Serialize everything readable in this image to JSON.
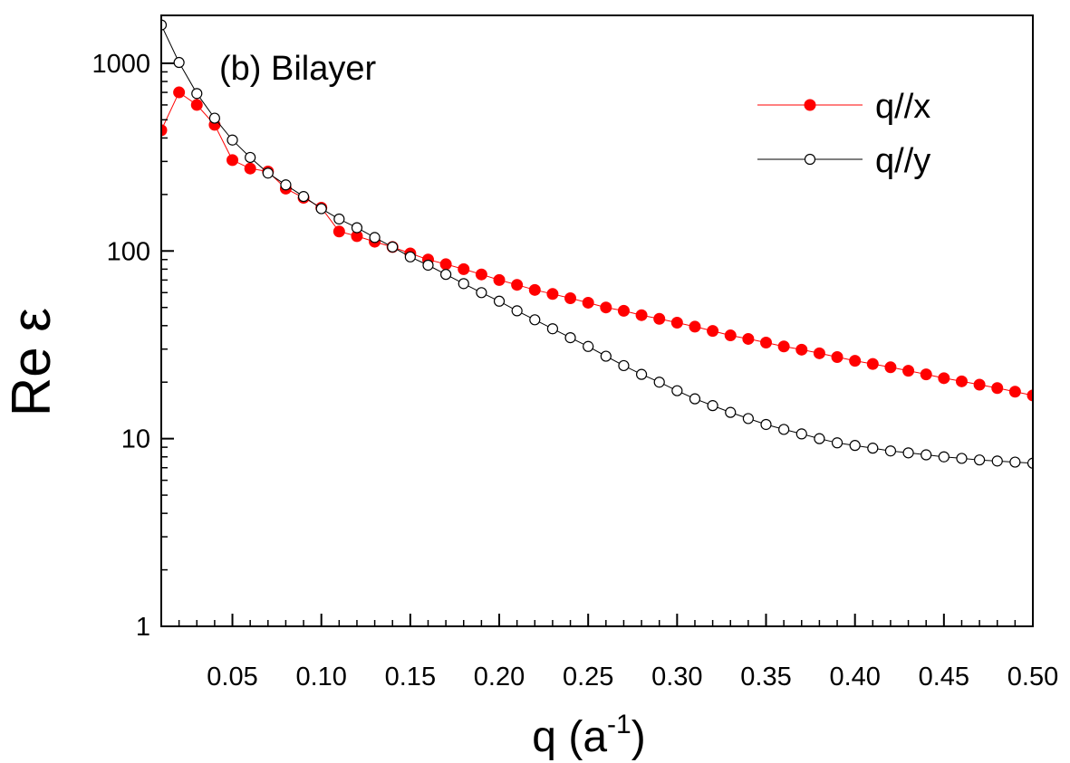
{
  "chart_data": {
    "type": "line",
    "title": "",
    "annotation": "(b) Bilayer",
    "xlabel": "q (a",
    "xlabel_sup": "-1",
    "xlabel_close": ")",
    "ylabel": "Re ε",
    "xlim": [
      0.01,
      0.5
    ],
    "ylim": [
      1,
      1800
    ],
    "yscale": "log",
    "grid": false,
    "legend_position": "top-right",
    "x_ticks": [
      0.05,
      0.1,
      0.15,
      0.2,
      0.25,
      0.3,
      0.35,
      0.4,
      0.45,
      0.5
    ],
    "x_tick_labels": [
      "0.05",
      "0.10",
      "0.15",
      "0.20",
      "0.25",
      "0.30",
      "0.35",
      "0.40",
      "0.45",
      "0.50"
    ],
    "y_ticks": [
      1,
      10,
      100,
      1000
    ],
    "y_tick_labels": [
      "1",
      "10",
      "100",
      "1000"
    ],
    "x": [
      0.01,
      0.02,
      0.03,
      0.04,
      0.05,
      0.06,
      0.07,
      0.08,
      0.09,
      0.1,
      0.11,
      0.12,
      0.13,
      0.14,
      0.15,
      0.16,
      0.17,
      0.18,
      0.19,
      0.2,
      0.21,
      0.22,
      0.23,
      0.24,
      0.25,
      0.26,
      0.27,
      0.28,
      0.29,
      0.3,
      0.31,
      0.32,
      0.33,
      0.34,
      0.35,
      0.36,
      0.37,
      0.38,
      0.39,
      0.4,
      0.41,
      0.42,
      0.43,
      0.44,
      0.45,
      0.46,
      0.47,
      0.48,
      0.49,
      0.5
    ],
    "series": [
      {
        "name": "q//x",
        "color": "#ff0000",
        "marker": "filled-circle",
        "values": [
          440,
          700,
          600,
          470,
          305,
          275,
          265,
          215,
          192,
          170,
          127,
          120,
          112,
          105,
          97,
          90,
          85,
          80,
          75,
          70,
          66,
          62,
          59,
          56,
          53,
          50,
          48,
          45.5,
          43.5,
          41.5,
          39.5,
          37.5,
          35.5,
          34,
          32.5,
          31,
          29.8,
          28.5,
          27.2,
          26,
          25,
          24,
          23,
          22,
          21,
          20.2,
          19.4,
          18.6,
          17.8,
          17
        ]
      },
      {
        "name": "q//y",
        "color": "#000000",
        "marker": "open-circle",
        "values": [
          1600,
          1010,
          690,
          510,
          390,
          315,
          260,
          225,
          195,
          168,
          148,
          133,
          118,
          105,
          93,
          84,
          75,
          67,
          60,
          54,
          48,
          43,
          38.5,
          34.5,
          31,
          27.5,
          24.5,
          22,
          20,
          18,
          16.3,
          15,
          13.8,
          12.8,
          11.9,
          11.2,
          10.6,
          10,
          9.5,
          9.2,
          8.9,
          8.6,
          8.4,
          8.2,
          8,
          7.85,
          7.7,
          7.6,
          7.5,
          7.4
        ]
      }
    ]
  }
}
